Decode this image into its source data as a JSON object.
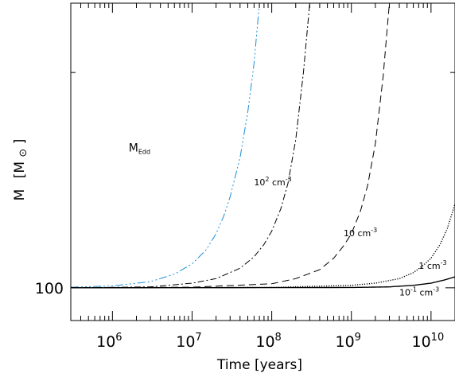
{
  "chart_data": {
    "type": "line",
    "title": "",
    "xlabel": "Time [years]",
    "ylabel_main": "M",
    "ylabel_unit": "[M",
    "ylabel_unit_sub": "⊙",
    "ylabel_unit_close": "]",
    "xscale": "log",
    "yscale": "log",
    "xlim": [
      300000,
      20000000000
    ],
    "ylim": [
      90,
      250
    ],
    "grid": false,
    "legend": "none (inline labels)",
    "x_ticks": [
      {
        "base": "10",
        "exp": "6",
        "value": 1000000
      },
      {
        "base": "10",
        "exp": "7",
        "value": 10000000
      },
      {
        "base": "10",
        "exp": "8",
        "value": 100000000
      },
      {
        "base": "10",
        "exp": "9",
        "value": 1000000000
      },
      {
        "base": "10",
        "exp": "10",
        "value": 10000000000
      }
    ],
    "y_ticks": [
      {
        "label": "100",
        "value": 100
      }
    ],
    "series": [
      {
        "label_main": "M",
        "label_sub": "Edd",
        "color": "#1a8fd6",
        "dash": "10,3,2,3,2,3,2,3",
        "stroke_width": 1.0,
        "label_pos": [
          1600000,
          155
        ],
        "x": [
          300000,
          1000000,
          3000000,
          6000000,
          10000000,
          15000000,
          20000000,
          25000000,
          30000000,
          40000000,
          50000000,
          60000000,
          70000000
        ],
        "y": [
          100.2,
          100.6,
          102,
          104.5,
          108,
          113,
          119,
          126,
          134,
          152,
          176,
          206,
          250
        ]
      },
      {
        "label_main": "10",
        "label_sup": "2",
        "label_unit": " cm",
        "label_unit_sup": "-3",
        "color": "#000000",
        "dash": "8,3,2,3",
        "stroke_width": 1.0,
        "label_pos": [
          60000000,
          139
        ],
        "x": [
          300000,
          3000000,
          10000000,
          20000000,
          40000000,
          60000000,
          80000000,
          100000000,
          130000000,
          160000000,
          200000000,
          250000000,
          300000000
        ],
        "y": [
          100,
          100.3,
          101.5,
          103,
          106.5,
          110.5,
          115,
          120,
          129,
          140,
          161,
          200,
          250
        ]
      },
      {
        "label_main": "10 cm",
        "label_sup": "-3",
        "color": "#000000",
        "dash": "9,5",
        "stroke_width": 1.0,
        "label_pos": [
          800000000,
          118
        ],
        "x": [
          300000,
          10000000,
          100000000,
          200000000,
          400000000,
          600000000,
          800000000,
          1000000000,
          1300000000,
          1600000000,
          2000000000,
          2500000000,
          3000000000
        ],
        "y": [
          100,
          100.2,
          101.3,
          103,
          106,
          110,
          114.5,
          119,
          128,
          139,
          159,
          197,
          250
        ]
      },
      {
        "label_main": "1 cm",
        "label_sup": "-3",
        "color": "#000000",
        "dash": "1.2,1.8",
        "stroke_width": 1.4,
        "label_pos": [
          7000000000,
          106.3
        ],
        "x": [
          300000,
          100000000,
          1000000000,
          2000000000,
          4000000000,
          6000000000,
          8000000000,
          10000000000,
          13000000000,
          16000000000,
          20000000000
        ],
        "y": [
          100,
          100.1,
          100.8,
          101.5,
          103,
          105,
          107.5,
          110,
          115,
          121,
          131
        ]
      },
      {
        "label_main": "10",
        "label_sup": "-1",
        "label_unit": " cm",
        "label_unit_sup": "-3",
        "color": "#000000",
        "dash": "",
        "stroke_width": 1.4,
        "label_pos": [
          4000000000,
          97.6
        ],
        "x": [
          300000,
          1000000000,
          3000000000,
          6000000000,
          10000000000,
          15000000000,
          20000000000
        ],
        "y": [
          100,
          100.1,
          100.3,
          100.8,
          101.5,
          102.6,
          103.6
        ]
      }
    ]
  }
}
